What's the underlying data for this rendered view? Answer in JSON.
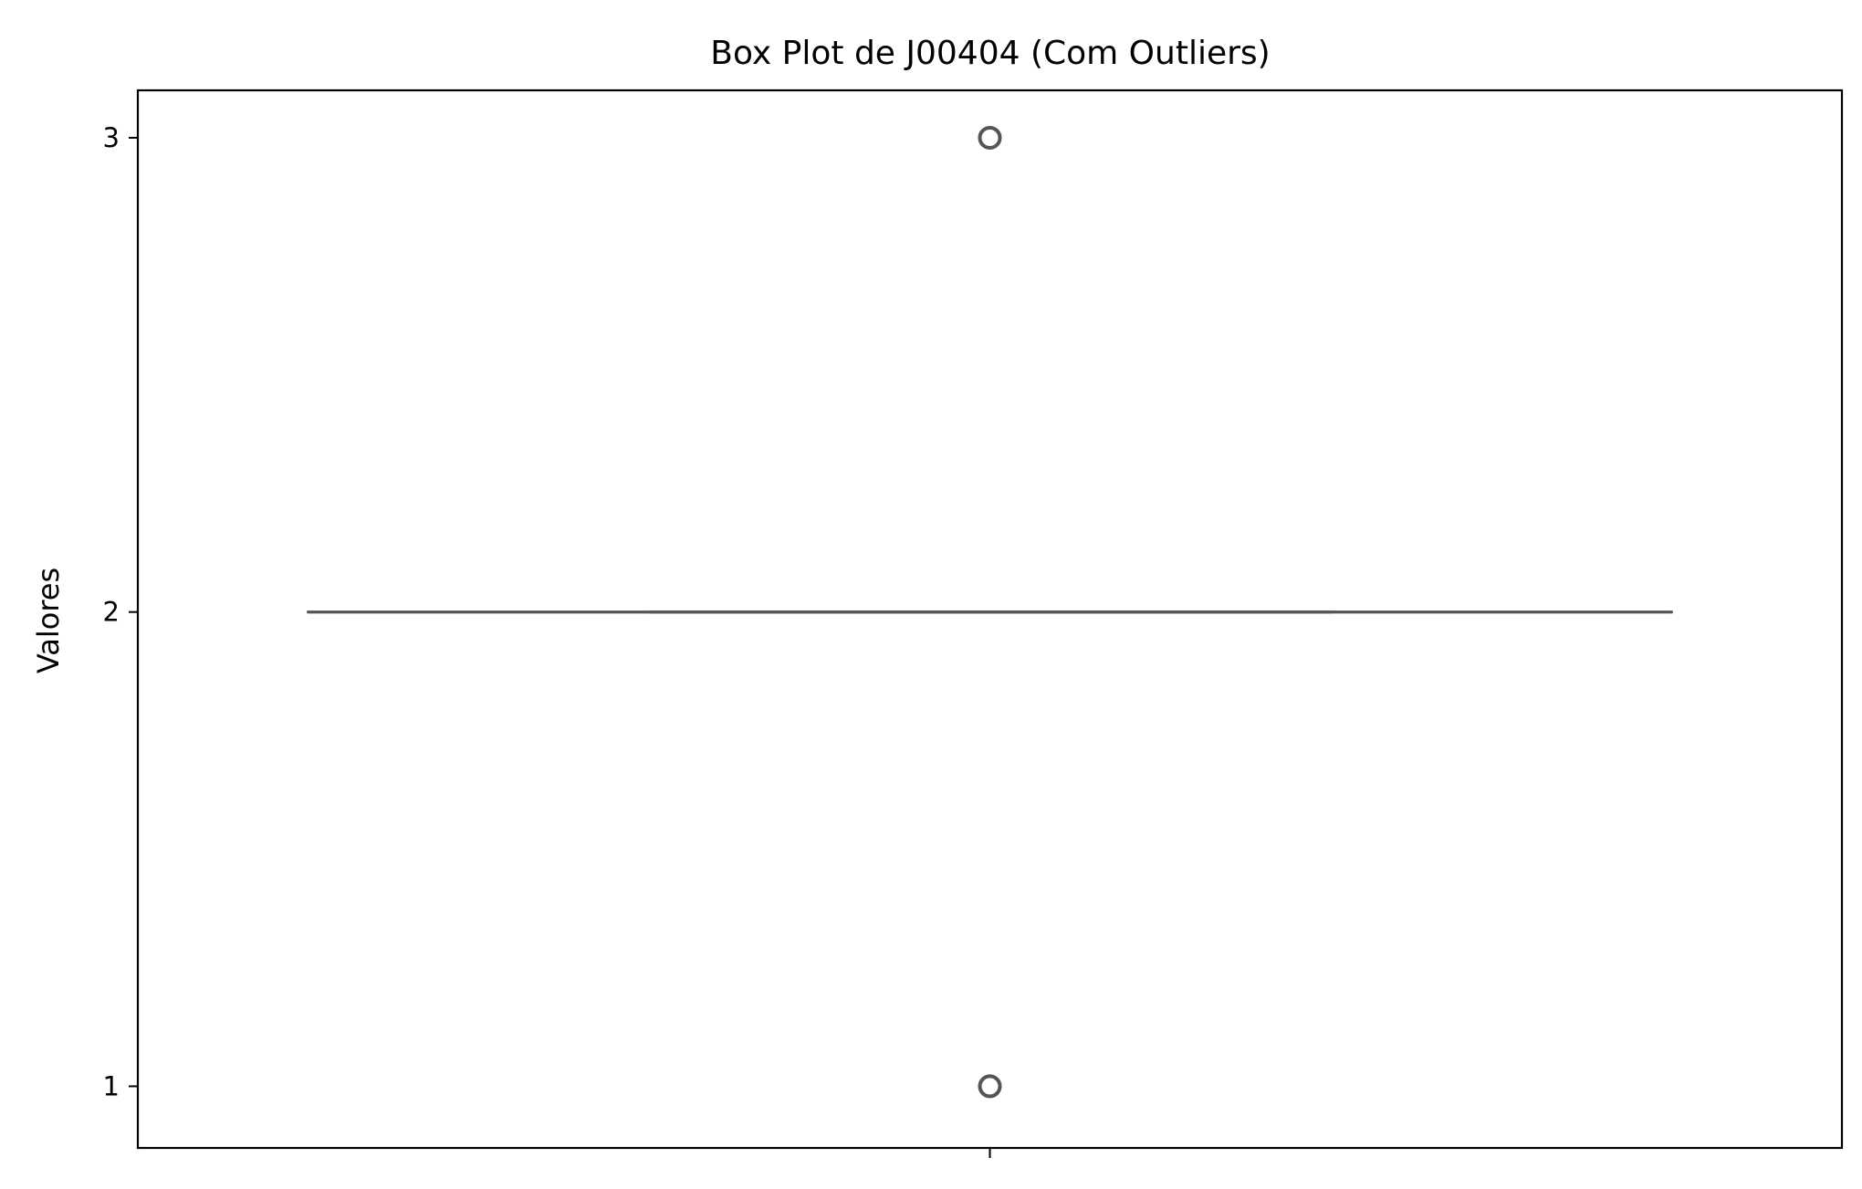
{
  "chart_data": {
    "type": "box",
    "title": "Box Plot de J00404 (Com Outliers)",
    "xlabel": "",
    "ylabel": "Valores",
    "ylim": [
      0.87,
      3.1
    ],
    "yticks": [
      1,
      2,
      3
    ],
    "xticks": [
      ""
    ],
    "grid": false,
    "legend": "none",
    "series": [
      {
        "q1": 2,
        "median": 2,
        "q3": 2,
        "whisker_low": 2,
        "whisker_high": 2,
        "outliers": [
          3,
          1
        ]
      }
    ],
    "colors": {
      "box_line": "#555555",
      "outlier_edge": "#555555",
      "axes": "#000000",
      "background": "#ffffff"
    }
  }
}
